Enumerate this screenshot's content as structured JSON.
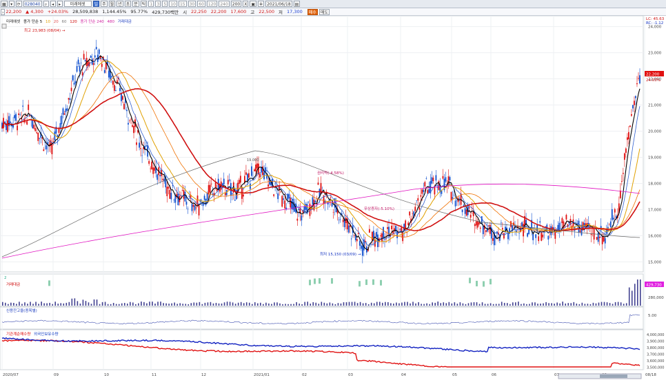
{
  "toolbar": {
    "code": "028040",
    "name": "미래에셋",
    "periods": [
      "일",
      "주",
      "월",
      "년",
      "초",
      "분",
      "틱"
    ],
    "numbers": [
      "1",
      "3",
      "5",
      "10",
      "15",
      "30",
      "60",
      "120",
      "240"
    ],
    "count": "200",
    "zoom": "X",
    "date": "2021/06/18"
  },
  "quote": {
    "price": "22,200",
    "change": "▲ 4,300",
    "change_pct": "+24.03%",
    "volume": "28,509,838",
    "volume_ratio": "1,144.45%",
    "turnover_ratio": "95.77%",
    "amount": "429,730백만",
    "label_open": "시",
    "open": "17,600",
    "label_high": "고",
    "high": "22,500",
    "label_low": "저",
    "low": "17,300",
    "buy_label": "매수",
    "sell_label": "매도",
    "ref1": "22,250",
    "ref2": "22,200"
  },
  "legends": {
    "price": [
      "미래에셋",
      "종가 단순 5",
      "10",
      "20",
      "60",
      "120",
      "종가 단순 240",
      "480"
    ],
    "volume_ma": "거래대금",
    "volume": "거래대금",
    "credit": "신용잔고율(종목별)",
    "foreign": [
      "기관계순매수량",
      "외국인보유수량"
    ],
    "ma_top": "LC: 45.63",
    "ma_top2": "RC: -1.12"
  },
  "annotations": {
    "high": "최고 23,983 (08/04) →",
    "low": "최저 15,150 (03/09) →",
    "rights": "권리락(-4.58%)",
    "unpaid": "무상증자(-5.10%)",
    "note1": "19,000"
  },
  "axes": {
    "price_ticks": [
      "24,000",
      "23,000",
      "22,000",
      "21,000",
      "20,000",
      "19,000",
      "18,000",
      "17,000",
      "16,000",
      "15,000"
    ],
    "price_last": "22,200",
    "price_last_pct": "24.03%",
    "volume_ticks": [
      "280,000"
    ],
    "volume_last": "429,730",
    "credit_ticks": [
      "5.00"
    ],
    "foreign_ticks": [
      "4,000,000",
      "3,900,000",
      "3,800,000",
      "3,700,000",
      "3,600,000",
      "3,500,000"
    ],
    "x_labels": [
      "2020/07",
      "09",
      "10",
      "11",
      "12",
      "2021/01",
      "02",
      "03",
      "04",
      "05",
      "06",
      "07",
      "08",
      "08/18"
    ],
    "pane_count_label": "2"
  },
  "chart_data": {
    "type": "candlestick",
    "price_range": [
      14800,
      24200
    ],
    "series_names": [
      "5",
      "10",
      "20",
      "60",
      "120",
      "240",
      "480"
    ],
    "last_close": 22200
  }
}
